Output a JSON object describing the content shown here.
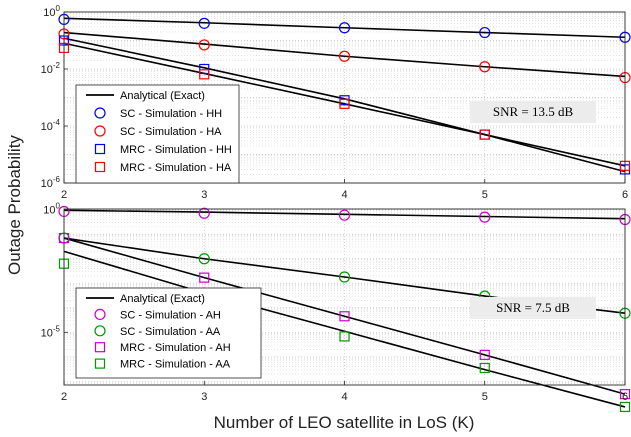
{
  "chart_data": [
    {
      "type": "line",
      "yscale": "log",
      "xlim": [
        2,
        6
      ],
      "ylim_exp": [
        -6,
        0
      ],
      "x_ticks": [
        "2",
        "3",
        "4",
        "5",
        "6"
      ],
      "y_ticks": [
        "10^0",
        "10^-2",
        "10^-4",
        "10^-6"
      ],
      "grid": true,
      "legend_position": "bottom-left",
      "annotation": "SNR = 13.5 dB",
      "legend": [
        {
          "label": "Analytical (Exact)",
          "marker": "line",
          "color": "#000000"
        },
        {
          "label": "SC - Simulation - HH",
          "marker": "circle",
          "color": "#0000ff"
        },
        {
          "label": "SC - Simulation - HA",
          "marker": "circle",
          "color": "#ff0000"
        },
        {
          "label": "MRC - Simulation - HH",
          "marker": "square",
          "color": "#0000ff"
        },
        {
          "label": "MRC - Simulation - HA",
          "marker": "square",
          "color": "#ff0000"
        }
      ],
      "x": [
        2,
        3,
        4,
        5,
        6
      ],
      "series": [
        {
          "name": "SC - Simulation - HH",
          "marker": "circle",
          "color": "#0000ff",
          "values": [
            0.55,
            0.4,
            0.28,
            0.19,
            0.13
          ]
        },
        {
          "name": "SC - Simulation - HA",
          "marker": "circle",
          "color": "#ff0000",
          "values": [
            0.17,
            0.07,
            0.028,
            0.012,
            0.005
          ]
        },
        {
          "name": "MRC - Simulation - HH",
          "marker": "square",
          "color": "#0000ff",
          "values": [
            0.1,
            0.01,
            0.0008,
            5e-05,
            3e-06
          ]
        },
        {
          "name": "MRC - Simulation - HA",
          "marker": "square",
          "color": "#ff0000",
          "values": [
            0.055,
            0.0065,
            0.0006,
            5e-05,
            4e-06
          ]
        }
      ],
      "analytical": [
        {
          "values": [
            0.6,
            0.42,
            0.28,
            0.19,
            0.13
          ]
        },
        {
          "values": [
            0.19,
            0.075,
            0.028,
            0.012,
            0.0055
          ]
        },
        {
          "values": [
            0.12,
            0.011,
            0.0009,
            5e-05,
            2.5e-06
          ]
        },
        {
          "values": [
            0.08,
            0.007,
            0.0006,
            5e-05,
            4e-06
          ]
        }
      ]
    },
    {
      "type": "line",
      "yscale": "log",
      "xlim": [
        2,
        6
      ],
      "ylim_exp": [
        -7.15,
        0.03
      ],
      "x_ticks": [
        "2",
        "3",
        "4",
        "5",
        "6"
      ],
      "y_ticks": [
        "10^0",
        "10^-5"
      ],
      "grid": true,
      "legend_position": "bottom-left",
      "annotation": "SNR = 7.5 dB",
      "legend": [
        {
          "label": "Analytical (Exact)",
          "marker": "line",
          "color": "#000000"
        },
        {
          "label": "SC - Simulation - AH",
          "marker": "circle",
          "color": "#cc00cc"
        },
        {
          "label": "SC - Simulation - AA",
          "marker": "circle",
          "color": "#009900"
        },
        {
          "label": "MRC - Simulation - AH",
          "marker": "square",
          "color": "#cc00cc"
        },
        {
          "label": "MRC - Simulation - AA",
          "marker": "square",
          "color": "#009900"
        }
      ],
      "x": [
        2,
        3,
        4,
        5,
        6
      ],
      "series": [
        {
          "name": "SC - Simulation - AH",
          "marker": "circle",
          "color": "#cc00cc",
          "values": [
            0.85,
            0.72,
            0.6,
            0.5,
            0.4
          ]
        },
        {
          "name": "SC - Simulation - AA",
          "marker": "circle",
          "color": "#009900",
          "values": [
            0.07,
            0.01,
            0.0018,
            0.0003,
            6e-05
          ]
        },
        {
          "name": "MRC - Simulation - AH",
          "marker": "square",
          "color": "#cc00cc",
          "values": [
            0.07,
            0.0017,
            4.5e-05,
            1.2e-06,
            3e-08
          ]
        },
        {
          "name": "MRC - Simulation - AA",
          "marker": "square",
          "color": "#009900",
          "values": [
            0.0063,
            0.00013,
            6.8e-06,
            3.5e-07,
            9e-09
          ]
        }
      ],
      "analytical": [
        {
          "values": [
            0.95,
            0.8,
            0.65,
            0.53,
            0.43
          ]
        },
        {
          "values": [
            0.07,
            0.01,
            0.0018,
            0.0003,
            6e-05
          ]
        },
        {
          "values": [
            0.07,
            0.0017,
            4.5e-05,
            1.2e-06,
            3e-08
          ]
        },
        {
          "values": [
            0.02,
            0.0004,
            1.1e-05,
            3e-07,
            9e-09
          ]
        }
      ]
    }
  ],
  "axes": {
    "ylabel": "Outage Probability",
    "xlabel": "Number of LEO satellite in LoS (K)"
  }
}
